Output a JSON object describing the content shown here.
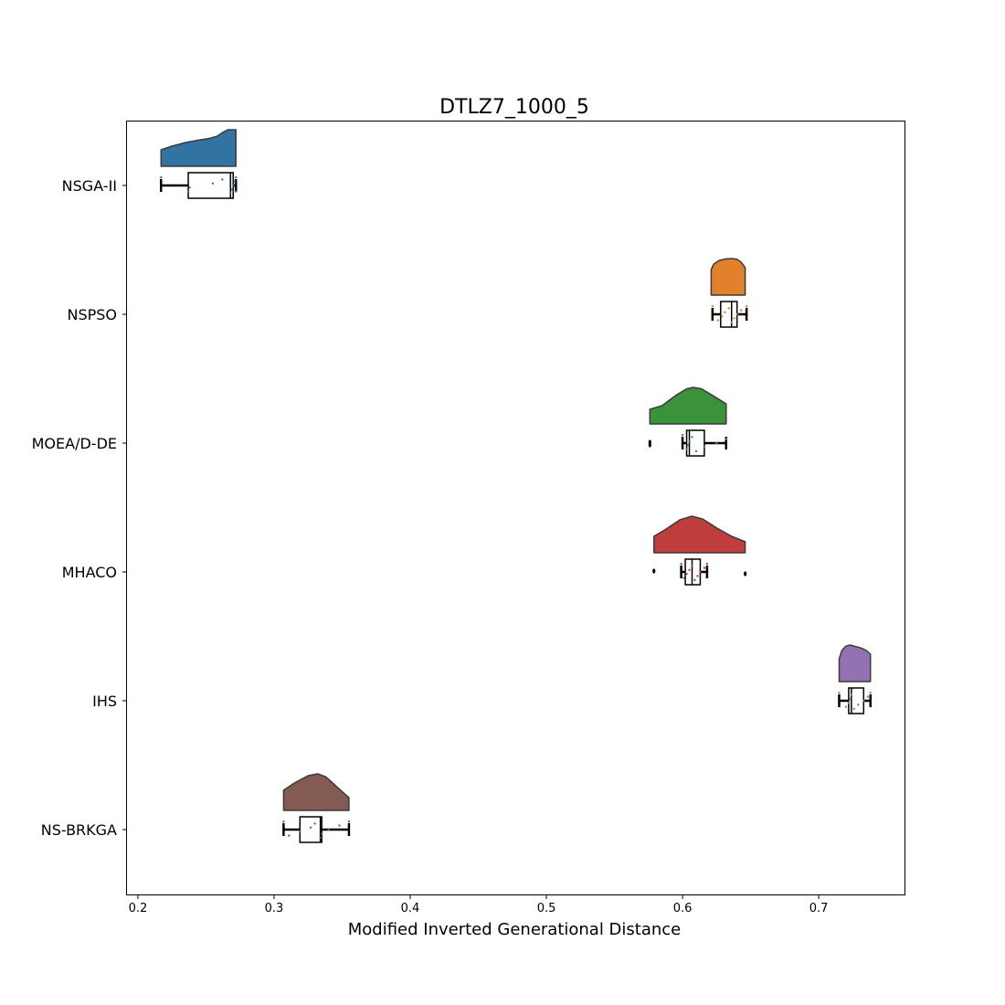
{
  "chart_data": {
    "type": "raincloud",
    "title": "DTLZ7_1000_5",
    "xlabel": "Modified Inverted Generational Distance",
    "ylabel": "",
    "xlim": [
      0.192,
      0.763
    ],
    "xticks": [
      0.2,
      0.3,
      0.4,
      0.5,
      0.6,
      0.7
    ],
    "xtick_labels": [
      "0.2",
      "0.3",
      "0.4",
      "0.5",
      "0.6",
      "0.7"
    ],
    "grid": false,
    "series": [
      {
        "name": "NSGA-II",
        "color": "#3274a1",
        "kde_range": [
          0.217,
          0.272
        ],
        "kde": [
          [
            0.217,
            0.45
          ],
          [
            0.225,
            0.55
          ],
          [
            0.235,
            0.65
          ],
          [
            0.245,
            0.72
          ],
          [
            0.252,
            0.76
          ],
          [
            0.258,
            0.82
          ],
          [
            0.262,
            0.92
          ],
          [
            0.266,
            1.0
          ],
          [
            0.272,
            1.0
          ]
        ],
        "box": {
          "whisker_low": 0.217,
          "q1": 0.237,
          "median": 0.268,
          "q3": 0.27,
          "whisker_high": 0.272
        },
        "points": [
          0.217,
          0.237,
          0.238,
          0.255,
          0.262,
          0.268,
          0.269,
          0.27,
          0.271,
          0.272,
          0.272
        ],
        "outliers": []
      },
      {
        "name": "NSPSO",
        "color": "#e1812c",
        "kde_range": [
          0.621,
          0.646
        ],
        "kde": [
          [
            0.621,
            0.7
          ],
          [
            0.623,
            0.85
          ],
          [
            0.627,
            0.95
          ],
          [
            0.632,
            0.99
          ],
          [
            0.636,
            1.0
          ],
          [
            0.64,
            0.98
          ],
          [
            0.643,
            0.9
          ],
          [
            0.646,
            0.75
          ]
        ],
        "box": {
          "whisker_low": 0.622,
          "q1": 0.628,
          "median": 0.636,
          "q3": 0.64,
          "whisker_high": 0.647
        },
        "points": [
          0.622,
          0.626,
          0.629,
          0.631,
          0.634,
          0.636,
          0.638,
          0.64,
          0.643,
          0.647
        ],
        "outliers": []
      },
      {
        "name": "MOEA/D-DE",
        "color": "#3a923a",
        "kde_range": [
          0.576,
          0.632
        ],
        "kde": [
          [
            0.576,
            0.4
          ],
          [
            0.585,
            0.5
          ],
          [
            0.595,
            0.78
          ],
          [
            0.603,
            0.96
          ],
          [
            0.608,
            1.0
          ],
          [
            0.614,
            0.96
          ],
          [
            0.622,
            0.78
          ],
          [
            0.632,
            0.55
          ]
        ],
        "box": {
          "whisker_low": 0.6,
          "q1": 0.603,
          "median": 0.605,
          "q3": 0.616,
          "whisker_high": 0.632
        },
        "points": [
          0.6,
          0.603,
          0.604,
          0.605,
          0.607,
          0.61,
          0.616,
          0.625,
          0.632
        ],
        "outliers": [
          0.576,
          0.576
        ]
      },
      {
        "name": "MHACO",
        "color": "#c03d3e",
        "kde_range": [
          0.579,
          0.646
        ],
        "kde": [
          [
            0.579,
            0.45
          ],
          [
            0.588,
            0.65
          ],
          [
            0.598,
            0.9
          ],
          [
            0.607,
            1.0
          ],
          [
            0.615,
            0.92
          ],
          [
            0.625,
            0.68
          ],
          [
            0.636,
            0.45
          ],
          [
            0.646,
            0.3
          ]
        ],
        "box": {
          "whisker_low": 0.599,
          "q1": 0.602,
          "median": 0.607,
          "q3": 0.613,
          "whisker_high": 0.618
        },
        "points": [
          0.599,
          0.601,
          0.603,
          0.605,
          0.607,
          0.609,
          0.611,
          0.613,
          0.616,
          0.618
        ],
        "outliers": [
          0.579,
          0.646
        ]
      },
      {
        "name": "IHS",
        "color": "#9372b2",
        "kde_range": [
          0.715,
          0.738
        ],
        "kde": [
          [
            0.715,
            0.62
          ],
          [
            0.717,
            0.85
          ],
          [
            0.72,
            0.97
          ],
          [
            0.723,
            1.0
          ],
          [
            0.727,
            0.96
          ],
          [
            0.731,
            0.92
          ],
          [
            0.735,
            0.85
          ],
          [
            0.738,
            0.75
          ]
        ],
        "box": {
          "whisker_low": 0.715,
          "q1": 0.722,
          "median": 0.724,
          "q3": 0.733,
          "whisker_high": 0.738
        },
        "points": [
          0.715,
          0.72,
          0.722,
          0.723,
          0.724,
          0.726,
          0.729,
          0.733,
          0.736,
          0.738
        ],
        "outliers": []
      },
      {
        "name": "NS-BRKGA",
        "color": "#845b53",
        "kde_range": [
          0.307,
          0.355
        ],
        "kde": [
          [
            0.307,
            0.55
          ],
          [
            0.315,
            0.75
          ],
          [
            0.325,
            0.95
          ],
          [
            0.332,
            1.0
          ],
          [
            0.338,
            0.92
          ],
          [
            0.346,
            0.65
          ],
          [
            0.355,
            0.35
          ]
        ],
        "box": {
          "whisker_low": 0.307,
          "q1": 0.319,
          "median": 0.334,
          "q3": 0.335,
          "whisker_high": 0.355
        },
        "points": [
          0.307,
          0.311,
          0.319,
          0.327,
          0.33,
          0.334,
          0.335,
          0.34,
          0.348,
          0.355
        ],
        "outliers": []
      }
    ]
  }
}
